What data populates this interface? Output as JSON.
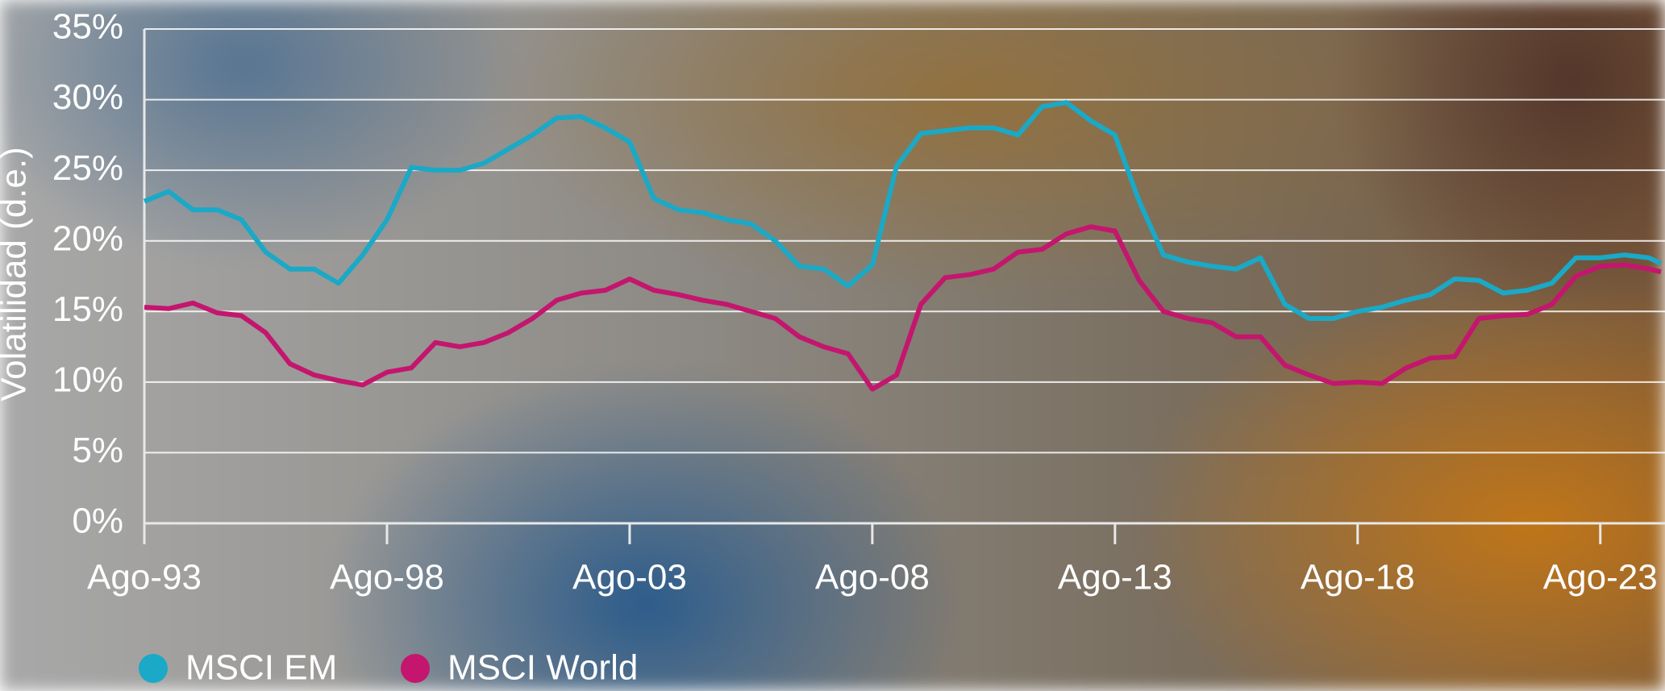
{
  "chart_data": {
    "type": "line",
    "y_label": "Volatilidad (d.e.)",
    "x": [
      "1993-08",
      "1994-02",
      "1994-08",
      "1995-02",
      "1995-08",
      "1996-02",
      "1996-08",
      "1997-02",
      "1997-08",
      "1998-02",
      "1998-08",
      "1999-02",
      "1999-08",
      "2000-02",
      "2000-08",
      "2001-02",
      "2001-08",
      "2002-02",
      "2002-08",
      "2003-02",
      "2003-08",
      "2004-02",
      "2004-08",
      "2005-02",
      "2005-08",
      "2006-02",
      "2006-08",
      "2007-02",
      "2007-08",
      "2008-02",
      "2008-08",
      "2009-02",
      "2009-08",
      "2010-02",
      "2010-08",
      "2011-02",
      "2011-08",
      "2012-02",
      "2012-08",
      "2013-02",
      "2013-08",
      "2014-02",
      "2014-08",
      "2015-02",
      "2015-08",
      "2016-02",
      "2016-08",
      "2017-02",
      "2017-08",
      "2018-02",
      "2018-08",
      "2019-02",
      "2019-08",
      "2020-02",
      "2020-08",
      "2021-02",
      "2021-08",
      "2022-02",
      "2022-08",
      "2023-02",
      "2023-08",
      "2024-02",
      "2024-08",
      "2024-11"
    ],
    "series": [
      {
        "name": "MSCI EM",
        "color": "#1aa9c6",
        "values": [
          22.8,
          23.5,
          22.2,
          22.2,
          21.5,
          19.2,
          18.0,
          18.0,
          17.0,
          19.0,
          21.5,
          25.2,
          25.0,
          25.0,
          25.5,
          26.5,
          27.5,
          28.7,
          28.8,
          28.0,
          27.0,
          23.0,
          22.2,
          22.0,
          21.5,
          21.2,
          20.0,
          18.2,
          18.0,
          16.8,
          18.3,
          25.3,
          27.6,
          27.8,
          28.0,
          28.0,
          27.5,
          29.5,
          29.8,
          28.5,
          27.5,
          22.8,
          19.0,
          18.5,
          18.2,
          18.0,
          18.8,
          15.5,
          14.5,
          14.5,
          15.0,
          15.3,
          15.8,
          16.2,
          17.3,
          17.2,
          16.3,
          16.5,
          17.0,
          18.8,
          18.8,
          19.0,
          18.8,
          18.4
        ]
      },
      {
        "name": "MSCI World",
        "color": "#c4166e",
        "values": [
          15.3,
          15.2,
          15.6,
          14.9,
          14.7,
          13.5,
          11.3,
          10.5,
          10.1,
          9.8,
          10.7,
          11.0,
          12.8,
          12.5,
          12.8,
          13.5,
          14.5,
          15.8,
          16.3,
          16.5,
          17.3,
          16.5,
          16.2,
          15.8,
          15.5,
          15.0,
          14.5,
          13.2,
          12.5,
          12.0,
          9.5,
          10.5,
          15.5,
          17.4,
          17.6,
          18.0,
          19.2,
          19.4,
          20.5,
          21.0,
          20.7,
          17.2,
          15.0,
          14.5,
          14.2,
          13.2,
          13.2,
          11.2,
          10.5,
          9.9,
          10.0,
          9.9,
          11.0,
          11.7,
          11.8,
          14.5,
          14.7,
          14.8,
          15.5,
          17.5,
          18.2,
          18.3,
          18.0,
          17.8
        ]
      }
    ],
    "xlim": [
      "1993-08",
      "2024-12"
    ],
    "xticks": [
      {
        "value": "1993-08",
        "label": "Ago-93"
      },
      {
        "value": "1998-08",
        "label": "Ago-98"
      },
      {
        "value": "2003-08",
        "label": "Ago-03"
      },
      {
        "value": "2008-08",
        "label": "Ago-08"
      },
      {
        "value": "2013-08",
        "label": "Ago-13"
      },
      {
        "value": "2018-08",
        "label": "Ago-18"
      },
      {
        "value": "2023-08",
        "label": "Ago-23"
      }
    ],
    "ylim": [
      0,
      35
    ],
    "yticks": [
      {
        "value": 0,
        "label": "0%"
      },
      {
        "value": 5,
        "label": "5%"
      },
      {
        "value": 10,
        "label": "10%"
      },
      {
        "value": 15,
        "label": "15%"
      },
      {
        "value": 20,
        "label": "20%"
      },
      {
        "value": 25,
        "label": "25%"
      },
      {
        "value": 30,
        "label": "30%"
      },
      {
        "value": 35,
        "label": "35%"
      }
    ],
    "grid": true
  }
}
